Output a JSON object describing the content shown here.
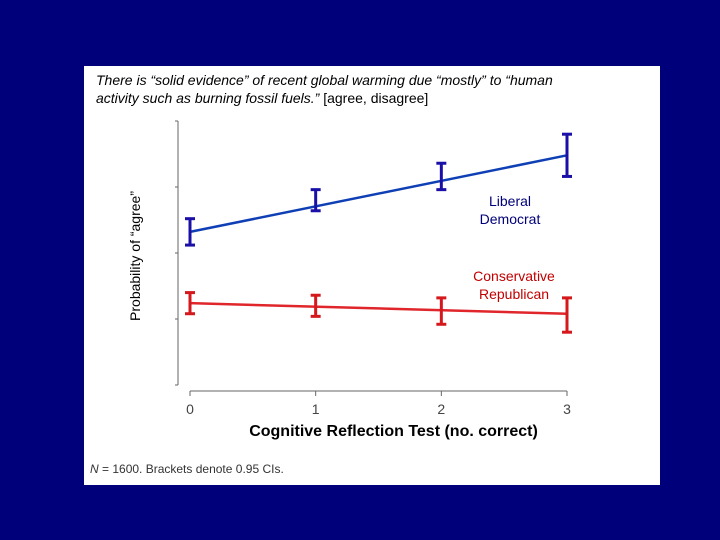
{
  "title": {
    "line1": "There is “solid evidence” of recent global warming due “mostly” to “human",
    "line2_italic": "activity such as burning fossil fuels.”",
    "line2_plain": " [agree, disagree]"
  },
  "footnote": {
    "n_label": "N",
    "text": " = 1600. Brackets denote 0.95 CIs."
  },
  "colors": {
    "background": "#00007a",
    "liberal": "#0f3fb5",
    "liberal_bars": "#1a10a8",
    "conservative": "#e0262b",
    "conservative_bars": "#d4181c"
  },
  "chart_data": {
    "type": "line",
    "xlabel": "Cognitive Reflection Test (no. correct)",
    "ylabel": "Probability of “agree”",
    "x": [
      0,
      1,
      2,
      3
    ],
    "xticks": [
      "0",
      "1",
      "2",
      "3"
    ],
    "xlim": [
      0,
      3
    ],
    "ylim": [
      0,
      1
    ],
    "grid": false,
    "series": [
      {
        "name": "Liberal Democrat",
        "label_lines": [
          "Liberal",
          "Democrat"
        ],
        "values": [
          0.58,
          0.7,
          0.79,
          0.87
        ],
        "ci_low": [
          0.53,
          0.66,
          0.74,
          0.79
        ],
        "ci_high": [
          0.63,
          0.74,
          0.84,
          0.95
        ]
      },
      {
        "name": "Conservative Republican",
        "label_lines": [
          "Conservative",
          "Republican"
        ],
        "values": [
          0.31,
          0.3,
          0.28,
          0.27
        ],
        "ci_low": [
          0.27,
          0.26,
          0.23,
          0.2
        ],
        "ci_high": [
          0.35,
          0.34,
          0.33,
          0.33
        ]
      }
    ]
  }
}
